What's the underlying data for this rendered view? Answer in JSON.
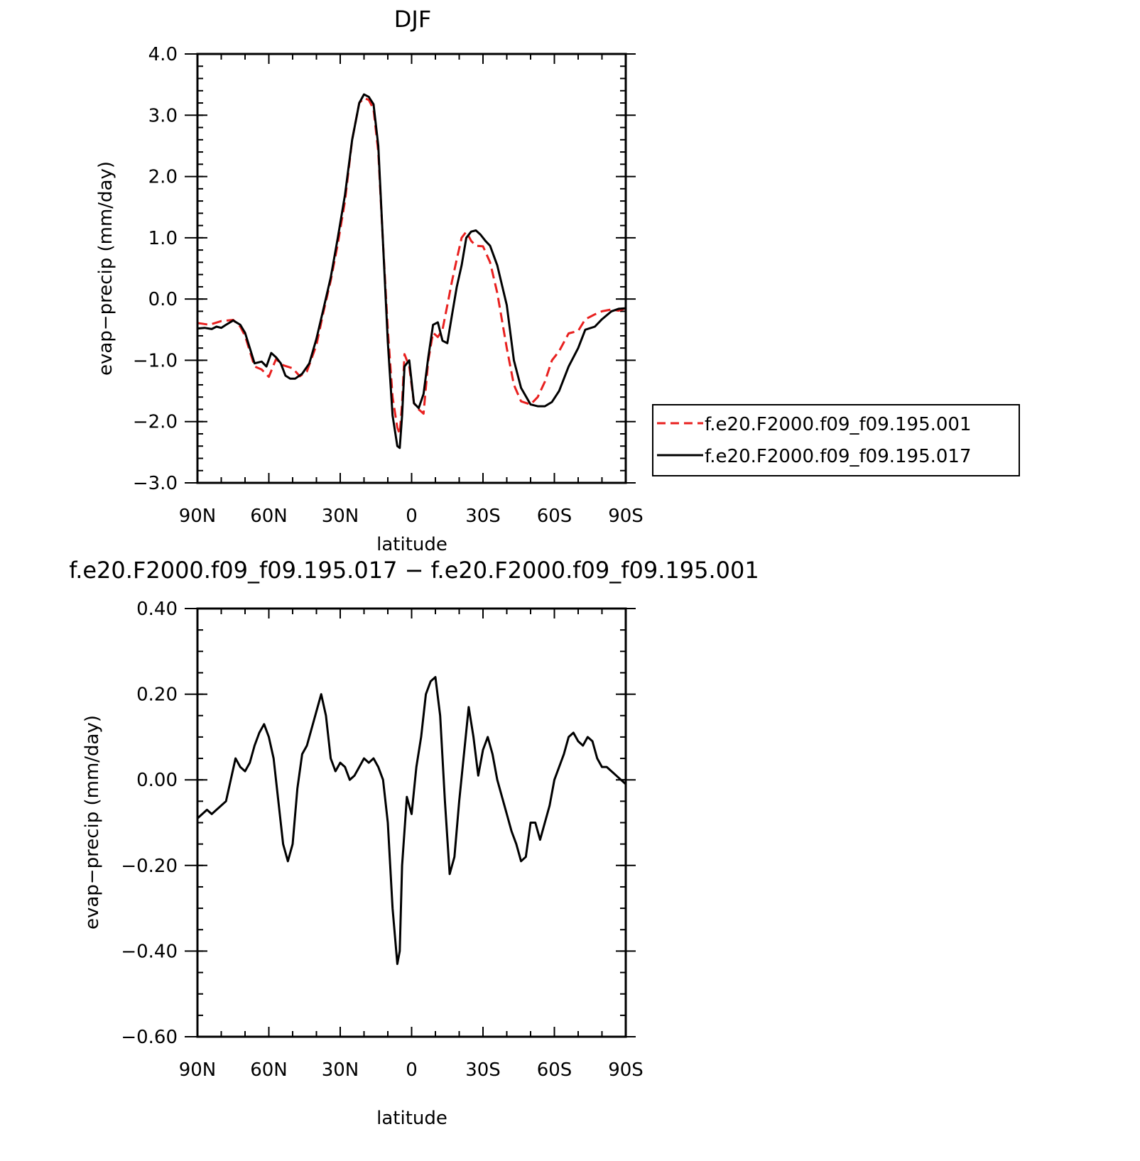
{
  "chart_data": [
    {
      "type": "line",
      "title": "DJF",
      "xlabel": "latitude",
      "ylabel": "evap−precip (mm/day)",
      "xlim": [
        90,
        -90
      ],
      "ylim": [
        -3.0,
        4.0
      ],
      "x_ticks": [
        {
          "value": 90,
          "label": "90N"
        },
        {
          "value": 60,
          "label": "60N"
        },
        {
          "value": 30,
          "label": "30N"
        },
        {
          "value": 0,
          "label": "0"
        },
        {
          "value": -30,
          "label": "30S"
        },
        {
          "value": -60,
          "label": "60S"
        },
        {
          "value": -90,
          "label": "90S"
        }
      ],
      "y_ticks": [
        {
          "value": 4.0,
          "label": "4.0"
        },
        {
          "value": 3.0,
          "label": "3.0"
        },
        {
          "value": 2.0,
          "label": "2.0"
        },
        {
          "value": 1.0,
          "label": "1.0"
        },
        {
          "value": 0.0,
          "label": "0.0"
        },
        {
          "value": -1.0,
          "label": "−1.0"
        },
        {
          "value": -2.0,
          "label": "−2.0"
        },
        {
          "value": -3.0,
          "label": "−3.0"
        }
      ],
      "legend_position": "right",
      "series": [
        {
          "name": "f.e20.F2000.f09_f09.195.001",
          "color": "#e8201f",
          "dash": "dashed",
          "x": [
            90,
            85,
            80,
            75,
            72,
            70,
            66,
            63,
            60,
            57,
            54,
            50,
            47,
            44,
            40,
            37,
            34,
            31,
            28,
            25,
            22,
            20,
            18,
            16,
            14,
            12,
            10,
            8,
            6,
            5,
            4,
            3,
            1,
            -1,
            -3,
            -5,
            -7,
            -9,
            -11,
            -13,
            -15,
            -17,
            -19,
            -21,
            -23,
            -25,
            -27,
            -30,
            -33,
            -36,
            -40,
            -43,
            -46,
            -50,
            -53,
            -56,
            -59,
            -62,
            -66,
            -70,
            -73,
            -77,
            -80,
            -84,
            -87,
            -90
          ],
          "y": [
            -0.39,
            -0.42,
            -0.36,
            -0.34,
            -0.45,
            -0.6,
            -1.1,
            -1.15,
            -1.27,
            -0.98,
            -1.08,
            -1.13,
            -1.26,
            -1.18,
            -0.75,
            -0.2,
            0.3,
            0.9,
            1.6,
            2.6,
            3.2,
            3.28,
            3.25,
            3.1,
            2.4,
            0.9,
            -0.5,
            -1.6,
            -2.1,
            -2.2,
            -1.7,
            -0.9,
            -1.1,
            -1.7,
            -1.8,
            -1.87,
            -1.0,
            -0.55,
            -0.62,
            -0.5,
            -0.1,
            0.3,
            0.65,
            1.0,
            1.1,
            0.95,
            0.87,
            0.86,
            0.6,
            0.1,
            -0.8,
            -1.4,
            -1.67,
            -1.72,
            -1.6,
            -1.35,
            -1.0,
            -0.85,
            -0.56,
            -0.52,
            -0.33,
            -0.25,
            -0.2,
            -0.17,
            -0.19,
            -0.15
          ]
        },
        {
          "name": "f.e20.F2000.f09_f09.195.017",
          "color": "#000000",
          "dash": "solid",
          "x": [
            90,
            87,
            84,
            82,
            80,
            78,
            75,
            72,
            70,
            66,
            63,
            61,
            59,
            57,
            55,
            53,
            51,
            49,
            46,
            43,
            40,
            37,
            34,
            31,
            28,
            25,
            22,
            20,
            18,
            16,
            14,
            12,
            10,
            8,
            6,
            5,
            4,
            3,
            1,
            -1,
            -3,
            -5,
            -7,
            -9,
            -11,
            -13,
            -15,
            -17,
            -19,
            -21,
            -23,
            -25,
            -27,
            -29,
            -31,
            -33,
            -36,
            -40,
            -43,
            -46,
            -50,
            -53,
            -56,
            -59,
            -62,
            -66,
            -70,
            -73,
            -77,
            -80,
            -84,
            -87,
            -90
          ],
          "y": [
            -0.48,
            -0.47,
            -0.49,
            -0.45,
            -0.47,
            -0.42,
            -0.35,
            -0.42,
            -0.55,
            -1.05,
            -1.02,
            -1.1,
            -0.88,
            -0.95,
            -1.05,
            -1.25,
            -1.3,
            -1.3,
            -1.22,
            -1.05,
            -0.65,
            -0.15,
            0.35,
            1.0,
            1.7,
            2.6,
            3.2,
            3.34,
            3.3,
            3.18,
            2.5,
            0.9,
            -0.7,
            -1.9,
            -2.4,
            -2.43,
            -1.9,
            -1.1,
            -1.0,
            -1.7,
            -1.78,
            -1.55,
            -0.95,
            -0.42,
            -0.38,
            -0.68,
            -0.72,
            -0.25,
            0.2,
            0.55,
            1.0,
            1.1,
            1.12,
            1.05,
            0.95,
            0.87,
            0.55,
            -0.1,
            -1.0,
            -1.45,
            -1.72,
            -1.75,
            -1.75,
            -1.68,
            -1.5,
            -1.1,
            -0.8,
            -0.5,
            -0.45,
            -0.33,
            -0.2,
            -0.16,
            -0.15
          ]
        }
      ]
    },
    {
      "type": "line",
      "title": "f.e20.F2000.f09_f09.195.017 − f.e20.F2000.f09_f09.195.001",
      "xlabel": "latitude",
      "ylabel": "evap−precip (mm/day)",
      "xlim": [
        90,
        -90
      ],
      "ylim": [
        -0.6,
        0.4
      ],
      "x_ticks": [
        {
          "value": 90,
          "label": "90N"
        },
        {
          "value": 60,
          "label": "60N"
        },
        {
          "value": 30,
          "label": "30N"
        },
        {
          "value": 0,
          "label": "0"
        },
        {
          "value": -30,
          "label": "30S"
        },
        {
          "value": -60,
          "label": "60S"
        },
        {
          "value": -90,
          "label": "90S"
        }
      ],
      "y_ticks": [
        {
          "value": 0.4,
          "label": "0.40"
        },
        {
          "value": 0.2,
          "label": "0.20"
        },
        {
          "value": 0.0,
          "label": "0.00"
        },
        {
          "value": -0.2,
          "label": "−0.20"
        },
        {
          "value": -0.4,
          "label": "−0.40"
        },
        {
          "value": -0.6,
          "label": "−0.60"
        }
      ],
      "series": [
        {
          "color": "#000000",
          "dash": "solid",
          "x": [
            90,
            88,
            86,
            84,
            82,
            80,
            78,
            76,
            74,
            72,
            70,
            68,
            66,
            64,
            62,
            60,
            58,
            56,
            54,
            52,
            50,
            48,
            46,
            44,
            42,
            40,
            38,
            36,
            34,
            32,
            30,
            28,
            26,
            24,
            22,
            20,
            18,
            16,
            14,
            12,
            10,
            8,
            6,
            5,
            4,
            2,
            0,
            -2,
            -4,
            -6,
            -8,
            -10,
            -12,
            -14,
            -16,
            -18,
            -20,
            -22,
            -24,
            -26,
            -28,
            -30,
            -32,
            -34,
            -36,
            -38,
            -40,
            -42,
            -44,
            -46,
            -48,
            -50,
            -52,
            -54,
            -56,
            -58,
            -60,
            -62,
            -64,
            -66,
            -68,
            -70,
            -72,
            -74,
            -76,
            -78,
            -80,
            -82,
            -84,
            -86,
            -88,
            -90
          ],
          "y": [
            -0.09,
            -0.08,
            -0.07,
            -0.08,
            -0.07,
            -0.06,
            -0.05,
            0.0,
            0.05,
            0.03,
            0.02,
            0.04,
            0.08,
            0.11,
            0.13,
            0.1,
            0.05,
            -0.05,
            -0.15,
            -0.19,
            -0.15,
            -0.02,
            0.06,
            0.08,
            0.12,
            0.16,
            0.2,
            0.15,
            0.05,
            0.02,
            0.04,
            0.03,
            0.0,
            0.01,
            0.03,
            0.05,
            0.04,
            0.05,
            0.03,
            0.0,
            -0.1,
            -0.3,
            -0.43,
            -0.4,
            -0.2,
            -0.04,
            -0.08,
            0.03,
            0.1,
            0.2,
            0.23,
            0.24,
            0.15,
            -0.05,
            -0.22,
            -0.18,
            -0.05,
            0.06,
            0.17,
            0.1,
            0.01,
            0.07,
            0.1,
            0.06,
            0.0,
            -0.04,
            -0.08,
            -0.12,
            -0.15,
            -0.19,
            -0.18,
            -0.1,
            -0.1,
            -0.14,
            -0.1,
            -0.06,
            0.0,
            0.03,
            0.06,
            0.1,
            0.11,
            0.09,
            0.08,
            0.1,
            0.09,
            0.05,
            0.03,
            0.03,
            0.02,
            0.01,
            0.0,
            -0.01
          ]
        }
      ]
    }
  ]
}
